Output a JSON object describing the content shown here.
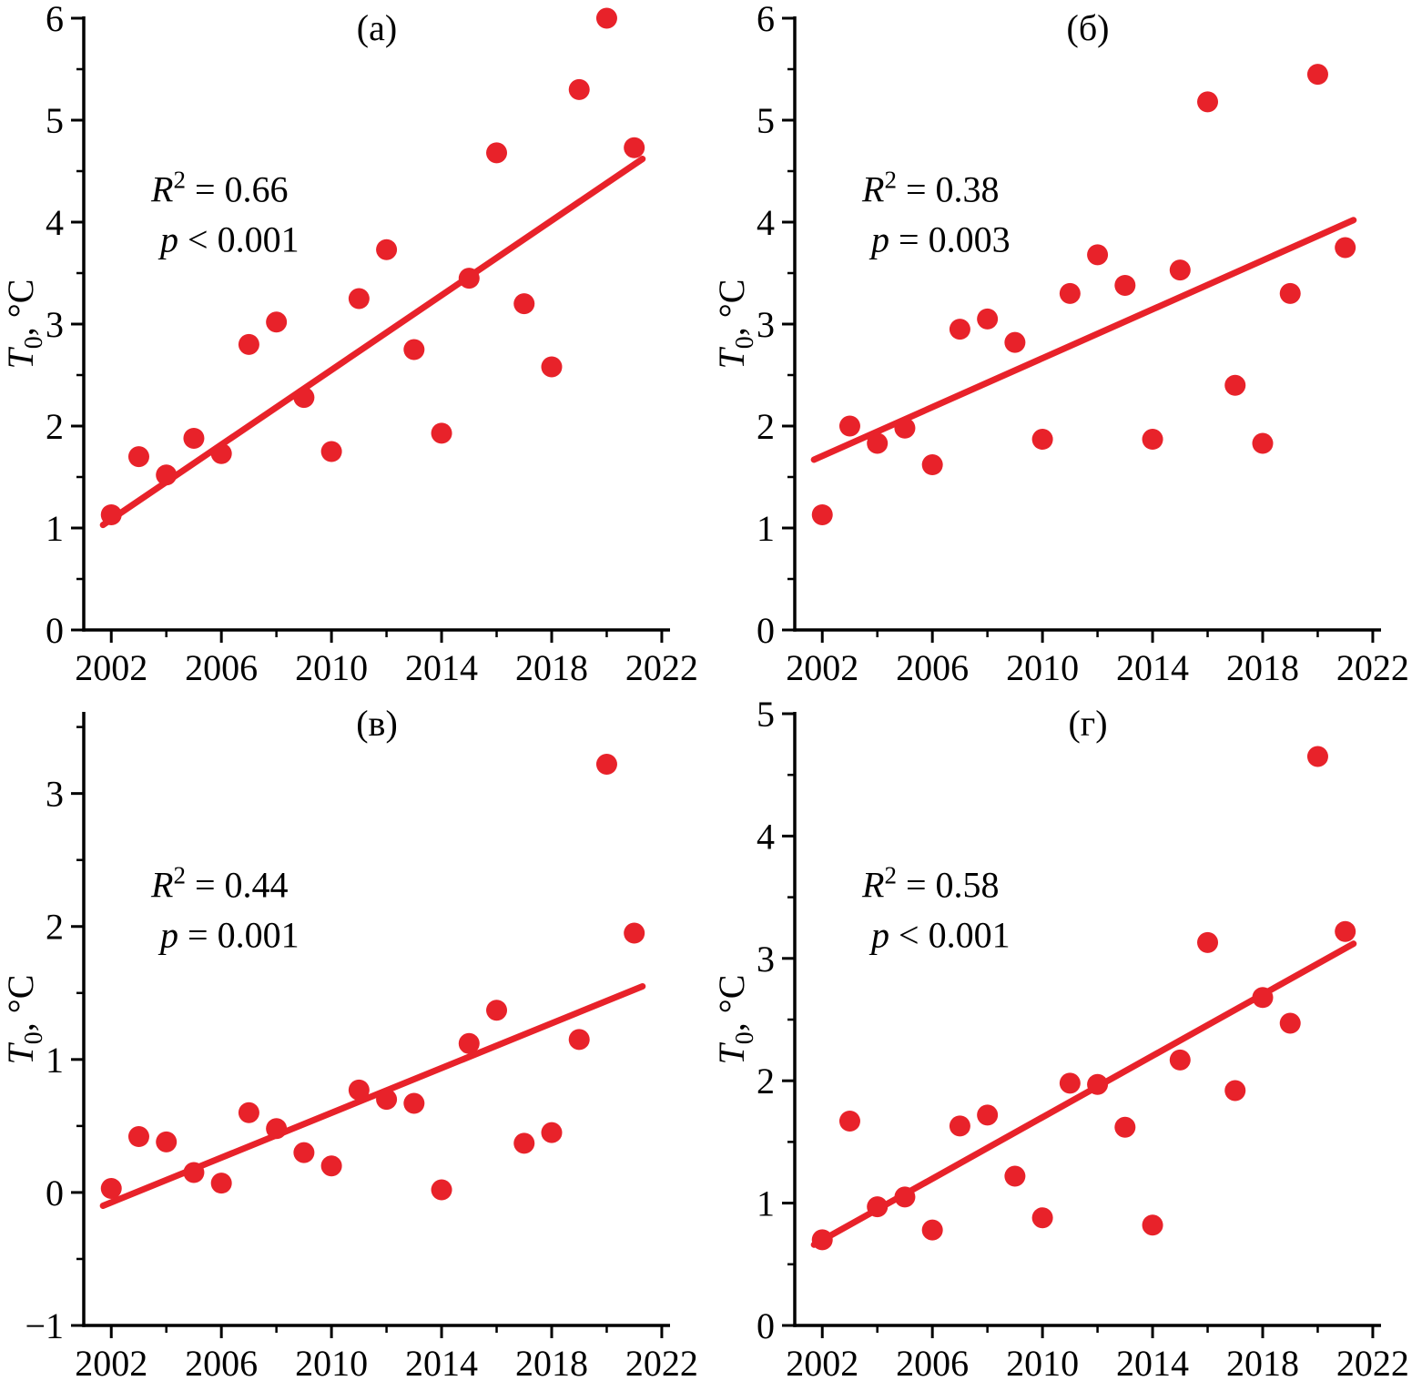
{
  "figure": {
    "background": "#ffffff",
    "point_color": "#e8222a",
    "line_color": "#e8222a",
    "axis_color": "#000000",
    "ylabel": {
      "var": "T",
      "sub": "0",
      "rest": ", °C"
    }
  },
  "chart_data": [
    {
      "id": "a",
      "type": "scatter",
      "title": "(а)",
      "ylabel": "T0, °C",
      "annotation": {
        "r2_var": "R",
        "r2_sup": "2",
        "r2_op": "=",
        "r2_val": "0.66",
        "p_var": "p",
        "p_op": "<",
        "p_val": "0.001"
      },
      "xlim": [
        2001,
        2022.3
      ],
      "ylim": [
        0,
        6
      ],
      "xticks": [
        2002,
        2006,
        2010,
        2014,
        2018,
        2022
      ],
      "yticks": [
        0,
        1,
        2,
        3,
        4,
        5,
        6
      ],
      "y_minor_step": 0.5,
      "x": [
        2002,
        2003,
        2004,
        2005,
        2006,
        2007,
        2008,
        2009,
        2010,
        2011,
        2012,
        2013,
        2014,
        2015,
        2016,
        2017,
        2018,
        2019,
        2020,
        2021
      ],
      "y": [
        1.13,
        1.7,
        1.52,
        1.88,
        1.73,
        2.8,
        3.02,
        2.28,
        1.75,
        3.25,
        3.73,
        2.75,
        1.93,
        3.45,
        4.68,
        3.2,
        2.58,
        5.3,
        6.0,
        4.73
      ],
      "trend": {
        "x": [
          2001.7,
          2021.3
        ],
        "y": [
          1.03,
          4.62
        ]
      }
    },
    {
      "id": "b",
      "type": "scatter",
      "title": "(б)",
      "ylabel": "T0, °C",
      "annotation": {
        "r2_var": "R",
        "r2_sup": "2",
        "r2_op": "=",
        "r2_val": "0.38",
        "p_var": "p",
        "p_op": "=",
        "p_val": "0.003"
      },
      "xlim": [
        2001,
        2022.3
      ],
      "ylim": [
        0,
        6
      ],
      "xticks": [
        2002,
        2006,
        2010,
        2014,
        2018,
        2022
      ],
      "yticks": [
        0,
        1,
        2,
        3,
        4,
        5,
        6
      ],
      "y_minor_step": 0.5,
      "x": [
        2002,
        2003,
        2004,
        2005,
        2006,
        2007,
        2008,
        2009,
        2010,
        2011,
        2012,
        2013,
        2014,
        2015,
        2016,
        2017,
        2018,
        2019,
        2020,
        2021
      ],
      "y": [
        1.13,
        2.0,
        1.83,
        1.98,
        1.62,
        2.95,
        3.05,
        2.82,
        1.87,
        3.3,
        3.68,
        3.38,
        1.87,
        3.53,
        5.18,
        2.4,
        1.83,
        3.3,
        5.45,
        3.75
      ],
      "trend": {
        "x": [
          2001.7,
          2021.3
        ],
        "y": [
          1.67,
          4.02
        ]
      }
    },
    {
      "id": "v",
      "type": "scatter",
      "title": "(в)",
      "ylabel": "T0, °C",
      "annotation": {
        "r2_var": "R",
        "r2_sup": "2",
        "r2_op": "=",
        "r2_val": "0.44",
        "p_var": "p",
        "p_op": "=",
        "p_val": "0.001"
      },
      "xlim": [
        2001,
        2022.3
      ],
      "ylim": [
        -1,
        3.6
      ],
      "xticks": [
        2002,
        2006,
        2010,
        2014,
        2018,
        2022
      ],
      "yticks": [
        -1,
        0,
        1,
        2,
        3
      ],
      "y_minor_step": 0.5,
      "x": [
        2002,
        2003,
        2004,
        2005,
        2006,
        2007,
        2008,
        2009,
        2010,
        2011,
        2012,
        2013,
        2014,
        2015,
        2016,
        2017,
        2018,
        2019,
        2020,
        2021
      ],
      "y": [
        0.03,
        0.42,
        0.38,
        0.15,
        0.07,
        0.6,
        0.48,
        0.3,
        0.2,
        0.77,
        0.7,
        0.67,
        0.02,
        1.12,
        1.37,
        0.37,
        0.45,
        1.15,
        3.22,
        1.95
      ],
      "trend": {
        "x": [
          2001.7,
          2021.3
        ],
        "y": [
          -0.1,
          1.55
        ]
      }
    },
    {
      "id": "g",
      "type": "scatter",
      "title": "(г)",
      "ylabel": "T0, °C",
      "annotation": {
        "r2_var": "R",
        "r2_sup": "2",
        "r2_op": "=",
        "r2_val": "0.58",
        "p_var": "p",
        "p_op": "<",
        "p_val": "0.001"
      },
      "xlim": [
        2001,
        2022.3
      ],
      "ylim": [
        0,
        5
      ],
      "xticks": [
        2002,
        2006,
        2010,
        2014,
        2018,
        2022
      ],
      "yticks": [
        0,
        1,
        2,
        3,
        4,
        5
      ],
      "y_minor_step": 0.5,
      "x": [
        2002,
        2003,
        2004,
        2005,
        2006,
        2007,
        2008,
        2009,
        2010,
        2011,
        2012,
        2013,
        2014,
        2015,
        2016,
        2017,
        2018,
        2019,
        2020,
        2021
      ],
      "y": [
        0.7,
        1.67,
        0.97,
        1.05,
        0.78,
        1.63,
        1.72,
        1.22,
        0.88,
        1.98,
        1.97,
        1.62,
        0.82,
        2.17,
        3.13,
        1.92,
        2.68,
        2.47,
        4.65,
        3.22
      ],
      "trend": {
        "x": [
          2001.7,
          2021.3
        ],
        "y": [
          0.66,
          3.12
        ]
      }
    }
  ]
}
